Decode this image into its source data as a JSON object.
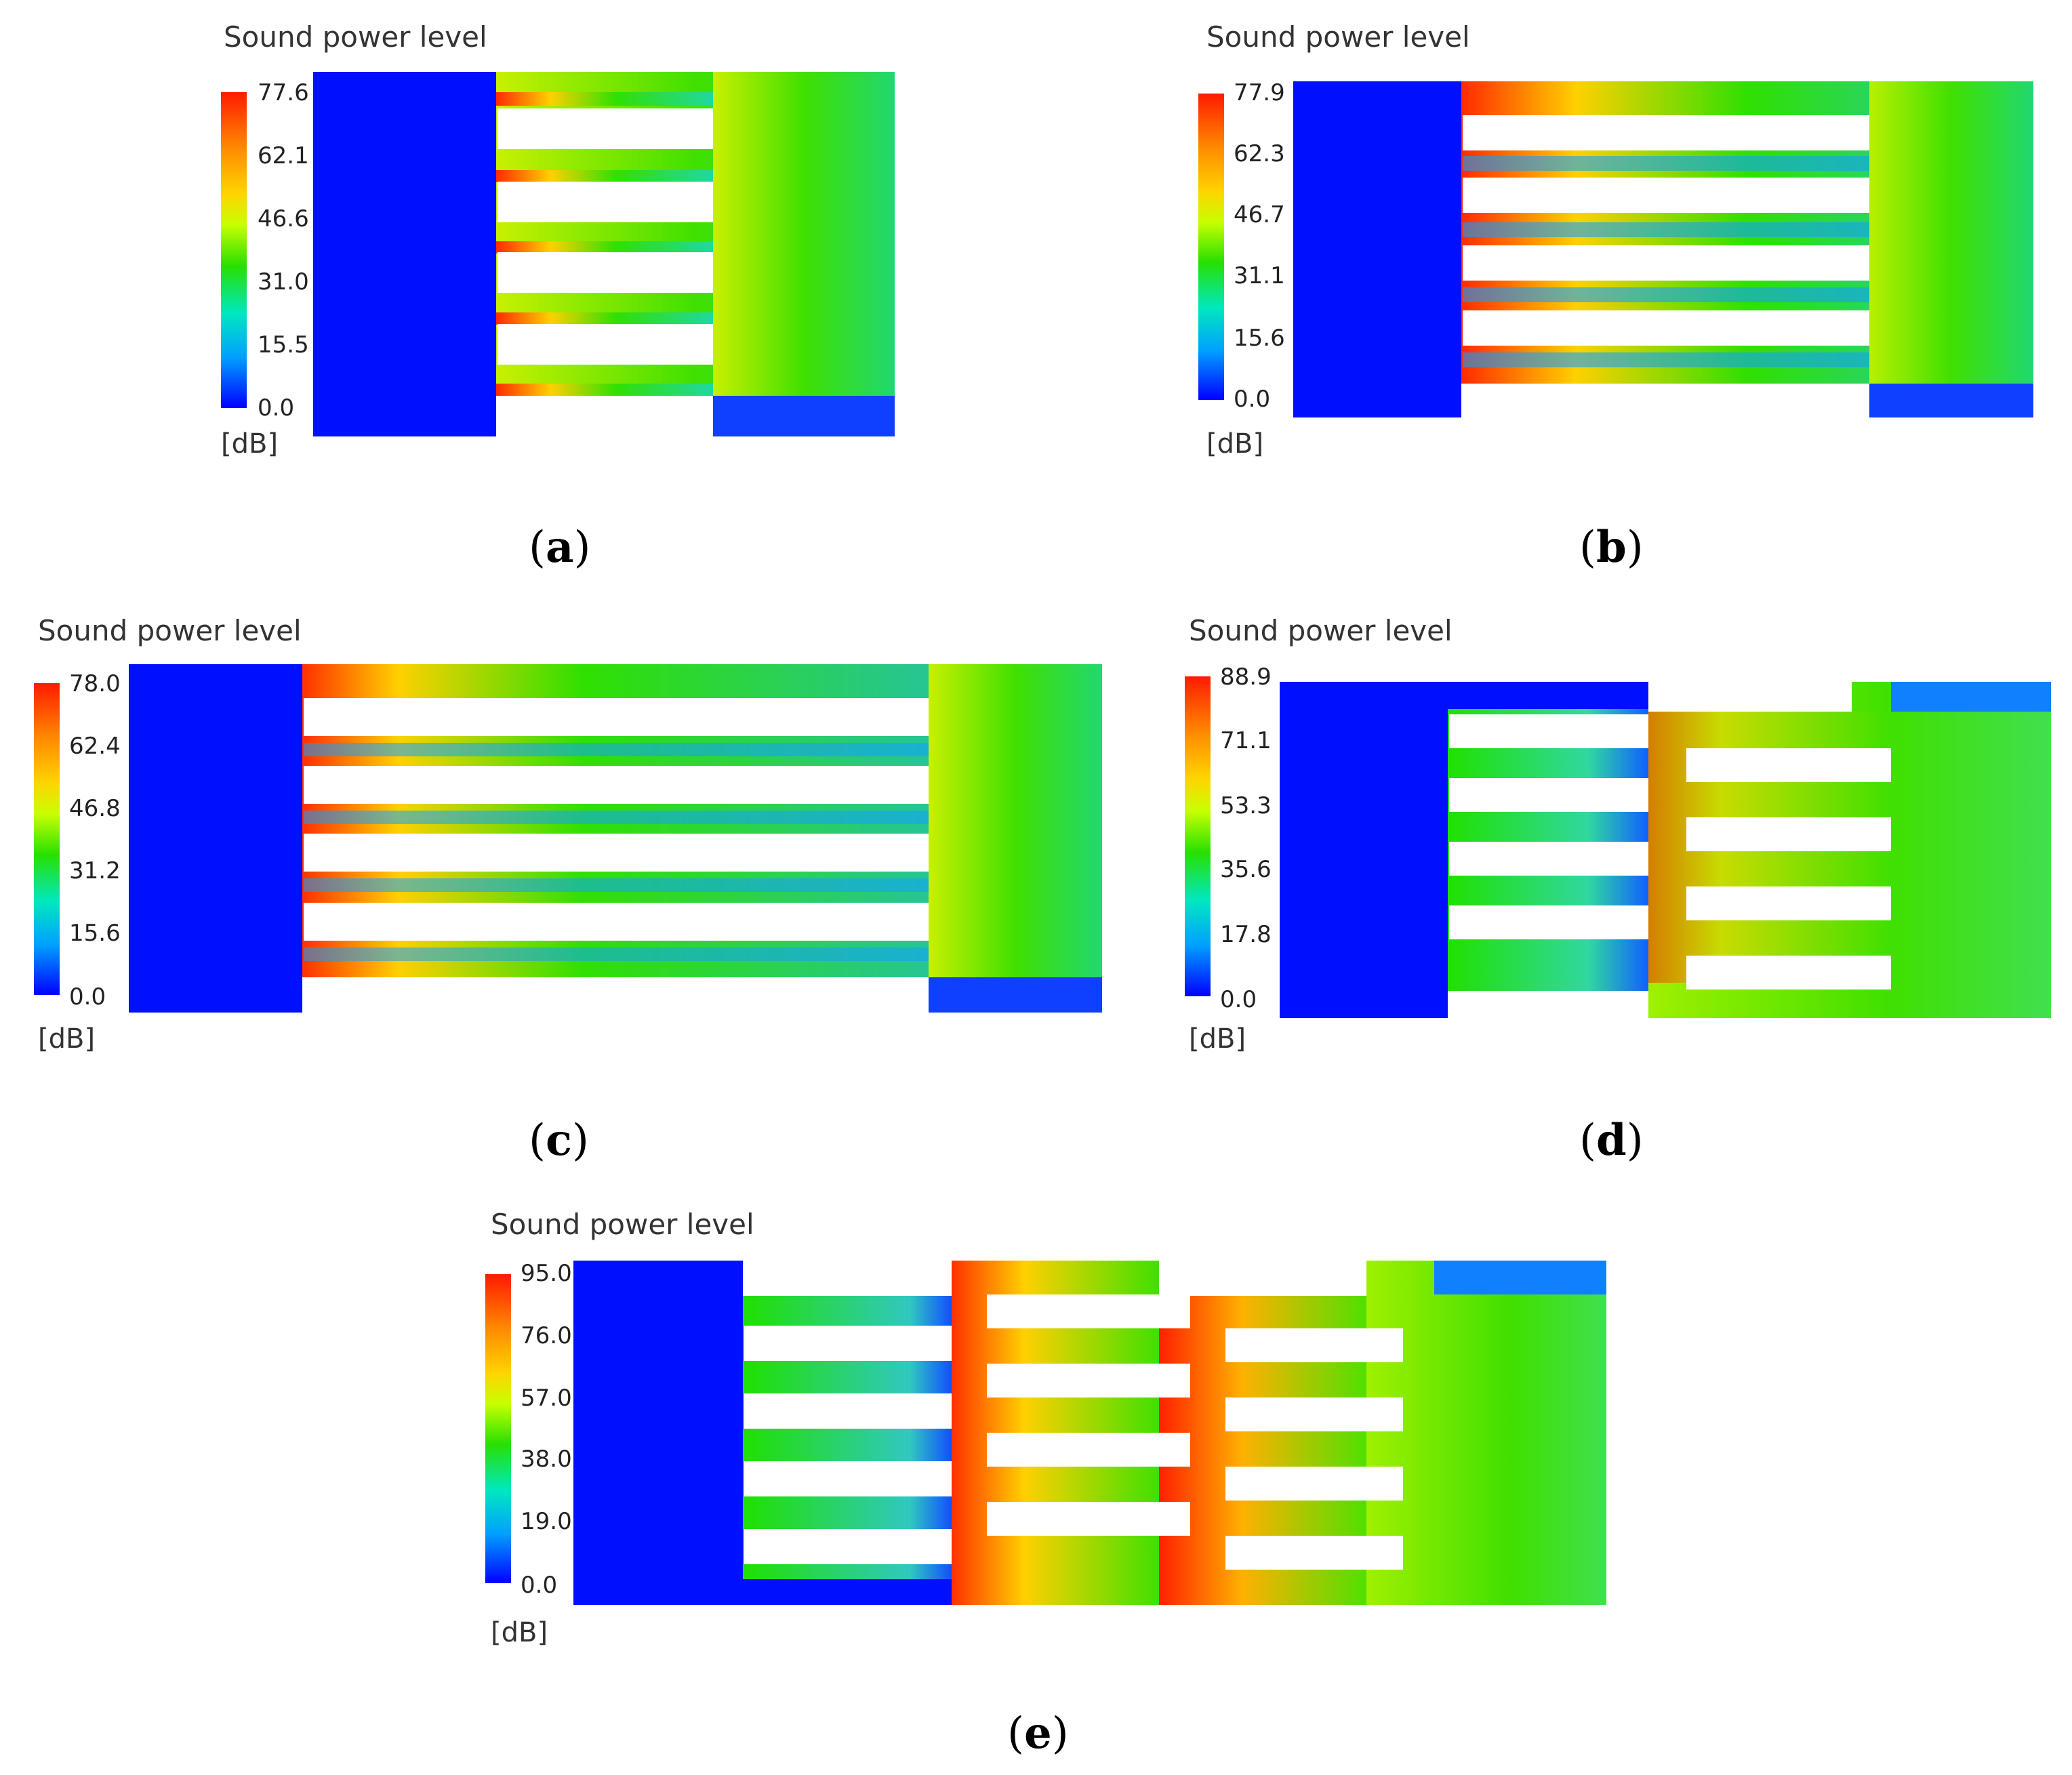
{
  "unit_label": "[dB]",
  "panels": [
    {
      "id": "a",
      "title": "Sound power level",
      "caption_open": "(",
      "caption_letter": "a",
      "caption_close": ")",
      "ticks": [
        "77.6",
        "62.1",
        "46.6",
        "31.0",
        "15.5",
        "0.0"
      ]
    },
    {
      "id": "b",
      "title": "Sound power level",
      "caption_open": "(",
      "caption_letter": "b",
      "caption_close": ")",
      "ticks": [
        "77.9",
        "62.3",
        "46.7",
        "31.1",
        "15.6",
        "0.0"
      ]
    },
    {
      "id": "c",
      "title": "Sound power level",
      "caption_open": "(",
      "caption_letter": "c",
      "caption_close": ")",
      "ticks": [
        "78.0",
        "62.4",
        "46.8",
        "31.2",
        "15.6",
        "0.0"
      ]
    },
    {
      "id": "d",
      "title": "Sound power level",
      "caption_open": "(",
      "caption_letter": "d",
      "caption_close": ")",
      "ticks": [
        "88.9",
        "71.1",
        "53.3",
        "35.6",
        "17.8",
        "0.0"
      ]
    },
    {
      "id": "e",
      "title": "Sound power level",
      "caption_open": "(",
      "caption_letter": "e",
      "caption_close": ")",
      "ticks": [
        "95.0",
        "76.0",
        "57.0",
        "38.0",
        "19.0",
        "0.0"
      ]
    }
  ],
  "colors": {
    "low": "#0000ff",
    "mid": "#28e000",
    "high": "#ff1a00",
    "plate": "#ffffff"
  }
}
